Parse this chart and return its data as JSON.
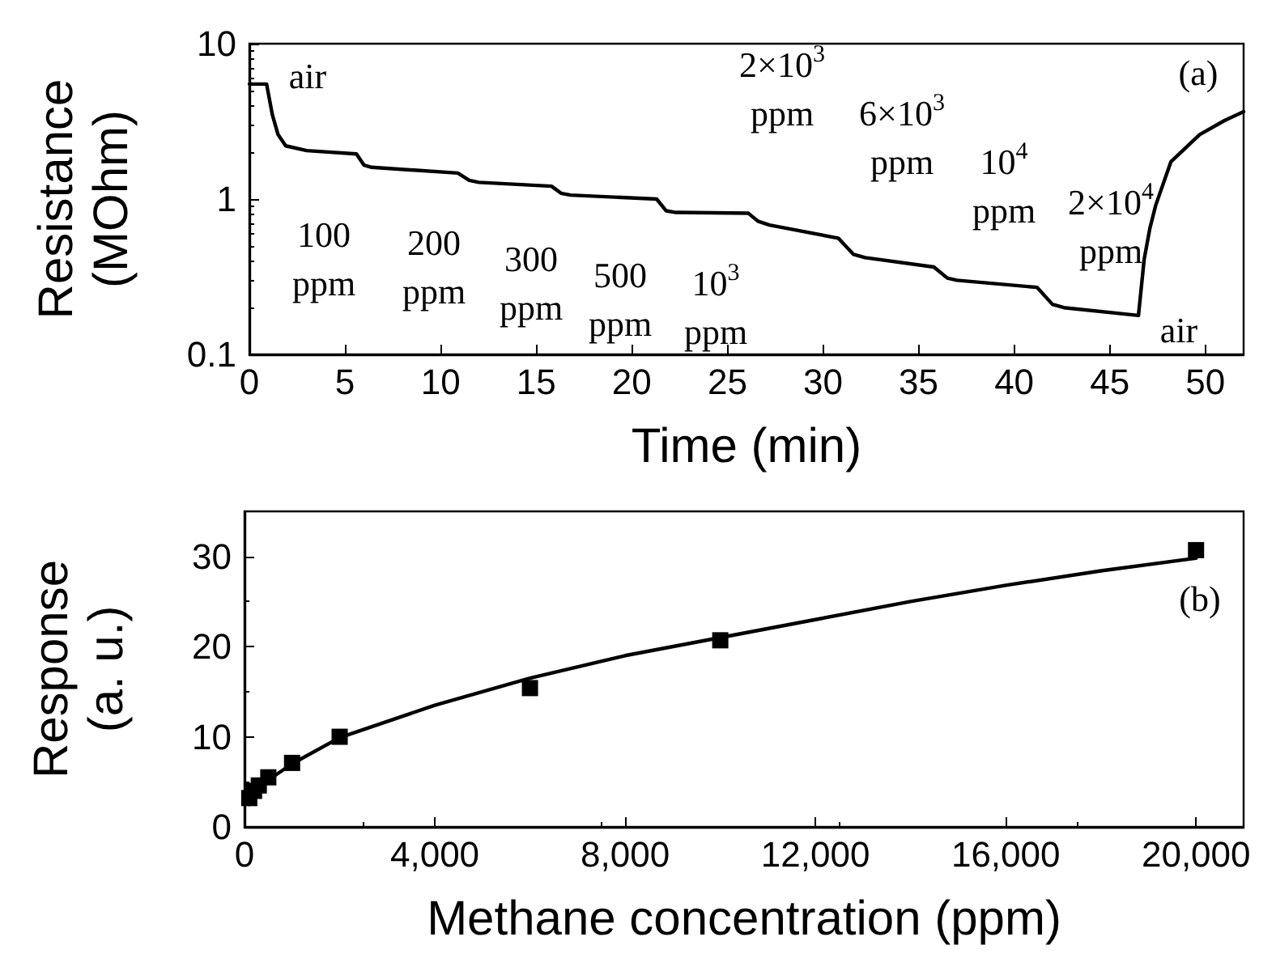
{
  "chart_data": [
    {
      "type": "line",
      "xlabel": "Time (min)",
      "ylabel": "Resistance\n(MOhm)",
      "log": "y",
      "xlim": [
        0,
        52
      ],
      "xticks": [
        0,
        5,
        10,
        15,
        20,
        25,
        30,
        35,
        40,
        45,
        50
      ],
      "ylim": [
        0.1,
        10
      ],
      "yticks": [
        0.1,
        1,
        10
      ],
      "marker": "none",
      "series": [
        {
          "color": "#000000",
          "x": [
            0,
            0.9,
            1.2,
            1.5,
            1.9,
            3,
            5.6,
            6,
            6.4,
            10.9,
            11.5,
            12,
            15.8,
            16.3,
            16.8,
            21.3,
            21.8,
            22.3,
            26.1,
            26.6,
            27.2,
            30.8,
            31.6,
            32.2,
            35.8,
            36.5,
            37,
            41.2,
            42,
            42.6,
            46.5,
            46.8,
            47.1,
            47.4,
            48.2,
            49.7,
            51,
            52
          ],
          "values": [
            5.5,
            5.5,
            3.5,
            2.6,
            2.2,
            2.05,
            1.95,
            1.65,
            1.6,
            1.47,
            1.32,
            1.28,
            1.21,
            1.09,
            1.06,
            1.0,
            0.84,
            0.82,
            0.81,
            0.72,
            0.68,
            0.56,
            0.44,
            0.42,
            0.365,
            0.31,
            0.3,
            0.27,
            0.21,
            0.2,
            0.178,
            0.41,
            0.65,
            0.91,
            1.74,
            2.6,
            3.2,
            3.65
          ]
        }
      ],
      "annotations": [
        "air",
        "100\nppm",
        "200\nppm",
        "300\nppm",
        "500\nppm",
        "10$^{3}$\nppm",
        "2×10$^{3}$\nppm",
        "6×10$^{3}$\nppm",
        "10$^{4}$\nppm",
        "2×10$^{4}$\nppm",
        "air",
        "(a)"
      ]
    },
    {
      "type": "scatter",
      "xlabel": "Methane concentration (ppm)",
      "ylabel": "Response\n(a. u.)",
      "xlim": [
        0,
        21000
      ],
      "xticks": [
        0,
        {
          "value": 4000,
          "label": "4,000"
        },
        {
          "value": 8000,
          "label": "8,000"
        },
        {
          "value": 12000,
          "label": "12,000"
        },
        {
          "value": 16000,
          "label": "16,000"
        },
        {
          "value": 20000,
          "label": "20,000"
        }
      ],
      "ylim": [
        0,
        35
      ],
      "yticks": [
        0,
        10,
        20,
        30
      ],
      "marker": "square",
      "series": [
        {
          "color": "#000000",
          "x": [
            100,
            200,
            300,
            500,
            1000,
            2000,
            6000,
            10000,
            20000
          ],
          "values": [
            3.2,
            4.0,
            4.6,
            5.5,
            7.1,
            10,
            15.4,
            20.7,
            30.7
          ]
        },
        {
          "type": "line",
          "marker": "none",
          "color": "#000000",
          "x": [
            100,
            300,
            500,
            1000,
            2000,
            4000,
            6000,
            8000,
            10000,
            12000,
            14000,
            16000,
            18000,
            20000
          ],
          "values": [
            2.5,
            4.0,
            5.2,
            7.0,
            9.9,
            13.5,
            16.5,
            19,
            21,
            23,
            25,
            26.8,
            28.4,
            29.8
          ]
        }
      ],
      "annotations": [
        "(b)"
      ]
    }
  ]
}
